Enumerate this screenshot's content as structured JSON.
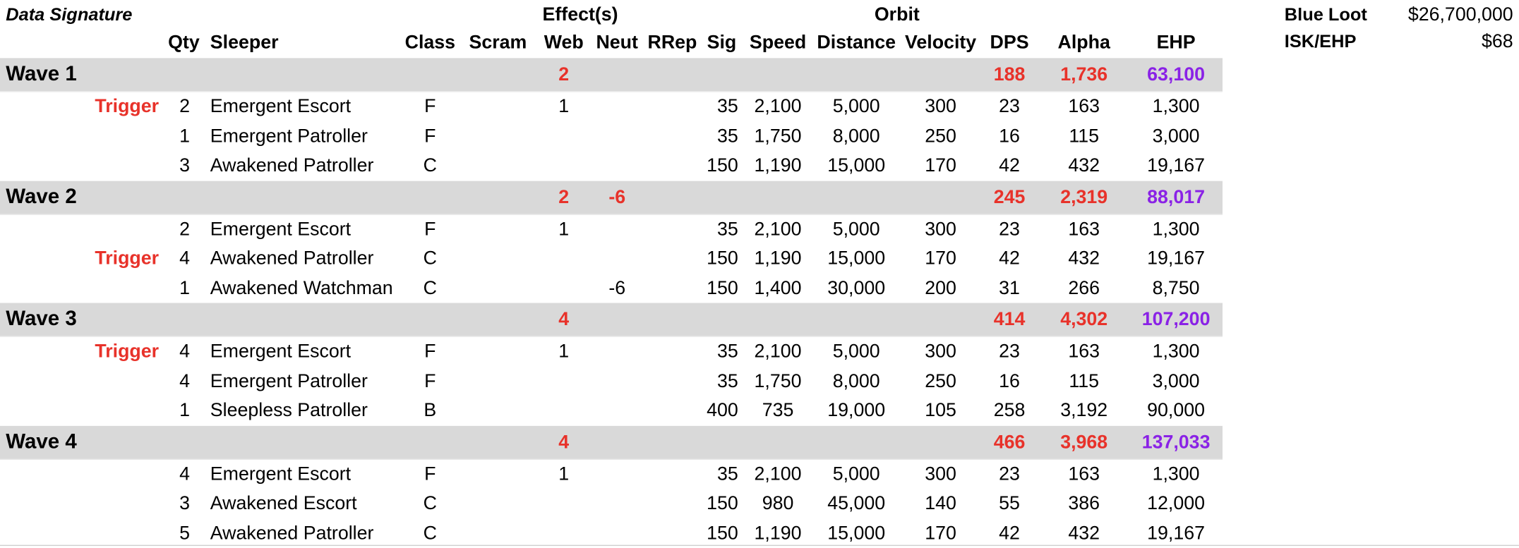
{
  "sheet": {
    "title": "Data Signature",
    "groups": {
      "effects": "Effect(s)",
      "orbit": "Orbit"
    },
    "headers": {
      "qty": "Qty",
      "sleeper": "Sleeper",
      "class": "Class",
      "scram": "Scram",
      "web": "Web",
      "neut": "Neut",
      "rrep": "RRep",
      "sig": "Sig",
      "speed": "Speed",
      "distance": "Distance",
      "velocity": "Velocity",
      "dps": "DPS",
      "alpha": "Alpha",
      "ehp": "EHP"
    },
    "summary": [
      {
        "label": "Blue Loot",
        "value": "$26,700,000"
      },
      {
        "label": "ISK/EHP",
        "value": "$68"
      }
    ],
    "colors": {
      "wave_band": "#d9d9d9",
      "trigger": "#e8322a",
      "ehp_total": "#8a22e6"
    }
  },
  "waves": [
    {
      "name": "Wave 1",
      "totals": {
        "web": "2",
        "neut": "",
        "dps": "188",
        "alpha": "1,736",
        "ehp": "63,100"
      },
      "rows": [
        {
          "trigger": "Trigger",
          "qty": "2",
          "sleeper": "Emergent Escort",
          "class": "F",
          "scram": "",
          "web": "1",
          "neut": "",
          "rrep": "",
          "sig": "35",
          "speed": "2,100",
          "distance": "5,000",
          "velocity": "300",
          "dps": "23",
          "alpha": "163",
          "ehp": "1,300"
        },
        {
          "trigger": "",
          "qty": "1",
          "sleeper": "Emergent Patroller",
          "class": "F",
          "scram": "",
          "web": "",
          "neut": "",
          "rrep": "",
          "sig": "35",
          "speed": "1,750",
          "distance": "8,000",
          "velocity": "250",
          "dps": "16",
          "alpha": "115",
          "ehp": "3,000"
        },
        {
          "trigger": "",
          "qty": "3",
          "sleeper": "Awakened Patroller",
          "class": "C",
          "scram": "",
          "web": "",
          "neut": "",
          "rrep": "",
          "sig": "150",
          "speed": "1,190",
          "distance": "15,000",
          "velocity": "170",
          "dps": "42",
          "alpha": "432",
          "ehp": "19,167"
        }
      ]
    },
    {
      "name": "Wave 2",
      "totals": {
        "web": "2",
        "neut": "-6",
        "dps": "245",
        "alpha": "2,319",
        "ehp": "88,017"
      },
      "rows": [
        {
          "trigger": "",
          "qty": "2",
          "sleeper": "Emergent Escort",
          "class": "F",
          "scram": "",
          "web": "1",
          "neut": "",
          "rrep": "",
          "sig": "35",
          "speed": "2,100",
          "distance": "5,000",
          "velocity": "300",
          "dps": "23",
          "alpha": "163",
          "ehp": "1,300"
        },
        {
          "trigger": "Trigger",
          "qty": "4",
          "sleeper": "Awakened Patroller",
          "class": "C",
          "scram": "",
          "web": "",
          "neut": "",
          "rrep": "",
          "sig": "150",
          "speed": "1,190",
          "distance": "15,000",
          "velocity": "170",
          "dps": "42",
          "alpha": "432",
          "ehp": "19,167"
        },
        {
          "trigger": "",
          "qty": "1",
          "sleeper": "Awakened Watchman",
          "class": "C",
          "scram": "",
          "web": "",
          "neut": "-6",
          "rrep": "",
          "sig": "150",
          "speed": "1,400",
          "distance": "30,000",
          "velocity": "200",
          "dps": "31",
          "alpha": "266",
          "ehp": "8,750"
        }
      ]
    },
    {
      "name": "Wave 3",
      "totals": {
        "web": "4",
        "neut": "",
        "dps": "414",
        "alpha": "4,302",
        "ehp": "107,200"
      },
      "rows": [
        {
          "trigger": "Trigger",
          "qty": "4",
          "sleeper": "Emergent Escort",
          "class": "F",
          "scram": "",
          "web": "1",
          "neut": "",
          "rrep": "",
          "sig": "35",
          "speed": "2,100",
          "distance": "5,000",
          "velocity": "300",
          "dps": "23",
          "alpha": "163",
          "ehp": "1,300"
        },
        {
          "trigger": "",
          "qty": "4",
          "sleeper": "Emergent Patroller",
          "class": "F",
          "scram": "",
          "web": "",
          "neut": "",
          "rrep": "",
          "sig": "35",
          "speed": "1,750",
          "distance": "8,000",
          "velocity": "250",
          "dps": "16",
          "alpha": "115",
          "ehp": "3,000"
        },
        {
          "trigger": "",
          "qty": "1",
          "sleeper": "Sleepless Patroller",
          "class": "B",
          "scram": "",
          "web": "",
          "neut": "",
          "rrep": "",
          "sig": "400",
          "speed": "735",
          "distance": "19,000",
          "velocity": "105",
          "dps": "258",
          "alpha": "3,192",
          "ehp": "90,000"
        }
      ]
    },
    {
      "name": "Wave 4",
      "totals": {
        "web": "4",
        "neut": "",
        "dps": "466",
        "alpha": "3,968",
        "ehp": "137,033"
      },
      "rows": [
        {
          "trigger": "",
          "qty": "4",
          "sleeper": "Emergent Escort",
          "class": "F",
          "scram": "",
          "web": "1",
          "neut": "",
          "rrep": "",
          "sig": "35",
          "speed": "2,100",
          "distance": "5,000",
          "velocity": "300",
          "dps": "23",
          "alpha": "163",
          "ehp": "1,300"
        },
        {
          "trigger": "",
          "qty": "3",
          "sleeper": "Awakened Escort",
          "class": "C",
          "scram": "",
          "web": "",
          "neut": "",
          "rrep": "",
          "sig": "150",
          "speed": "980",
          "distance": "45,000",
          "velocity": "140",
          "dps": "55",
          "alpha": "386",
          "ehp": "12,000"
        },
        {
          "trigger": "",
          "qty": "5",
          "sleeper": "Awakened Patroller",
          "class": "C",
          "scram": "",
          "web": "",
          "neut": "",
          "rrep": "",
          "sig": "150",
          "speed": "1,190",
          "distance": "15,000",
          "velocity": "170",
          "dps": "42",
          "alpha": "432",
          "ehp": "19,167"
        }
      ]
    }
  ]
}
